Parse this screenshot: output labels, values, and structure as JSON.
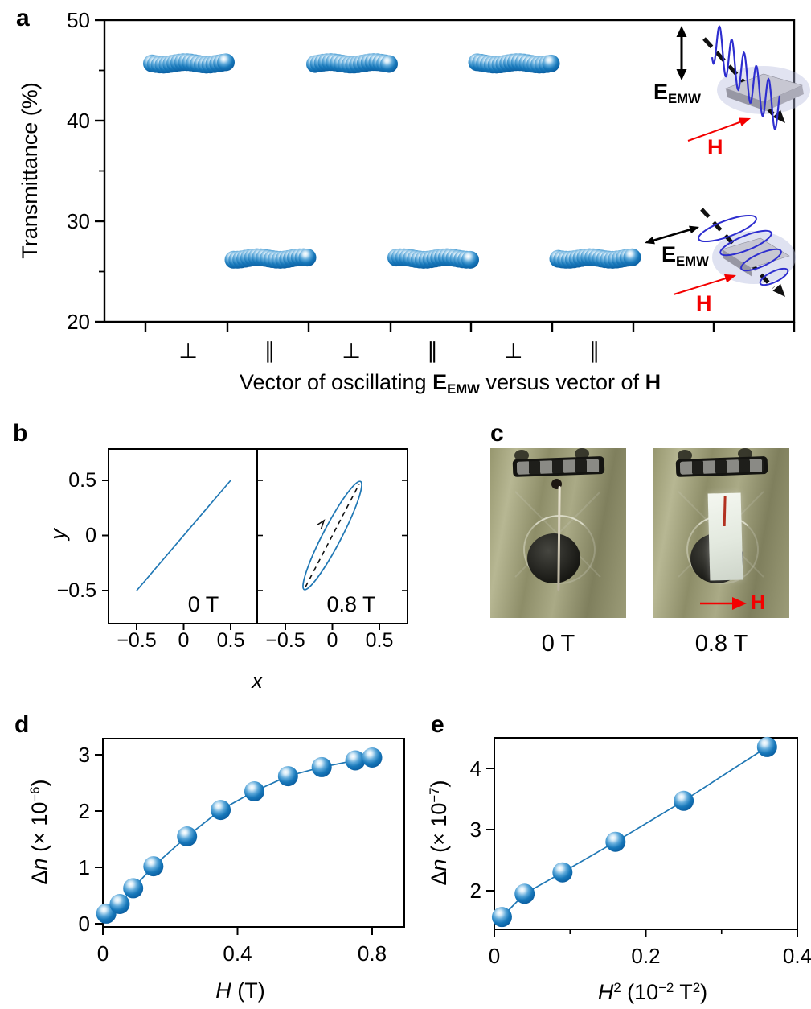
{
  "colors": {
    "accent_blue": "#1f77b4",
    "sphere_blue": "#1172b8",
    "wave_blue": "#2e2ecf",
    "red": "#f30000",
    "black": "#000000"
  },
  "panels": {
    "a": {
      "letter": "a",
      "ylabel": "Transmittance (%)",
      "xtitle": {
        "pre": "Vector of oscillating ",
        "e": "E",
        "e_sub": "EMW",
        "mid": " versus vector of ",
        "h": "H"
      },
      "insets": {
        "top": {
          "e": "E",
          "e_sub": "EMW",
          "h": "H"
        },
        "bottom": {
          "e": "E",
          "e_sub": "EMW",
          "h": "H"
        }
      }
    },
    "b": {
      "letter": "b",
      "ylabel": "y",
      "xlabel": "x",
      "labels": {
        "left": "0 T",
        "right": "0.8 T"
      }
    },
    "c": {
      "letter": "c",
      "captions": {
        "left": "0 T",
        "right": "0.8 T"
      },
      "h_label": "H"
    },
    "d": {
      "letter": "d",
      "ylabel": {
        "pre": "Δ",
        "n": "n",
        "mid": " (× 10",
        "sup": "−6",
        "post": ")"
      },
      "xlabel": {
        "h": "H",
        "post": " (T)"
      }
    },
    "e": {
      "letter": "e",
      "ylabel": {
        "pre": "Δ",
        "n": "n",
        "mid": " (× 10",
        "sup": "−7",
        "post": ")"
      },
      "xlabel": {
        "h": "H",
        "sup2": "2",
        "mid": " (10",
        "supm2": "−2",
        "t": " T",
        "sup2b": "2",
        "post": ")"
      }
    }
  },
  "chart_data": [
    {
      "panel": "a",
      "type": "scatter",
      "title": "",
      "xlabel": "Vector of oscillating E_EMW versus vector of H",
      "ylabel": "Transmittance (%)",
      "ylim": [
        20,
        50
      ],
      "yticks": [
        50,
        40,
        30,
        20
      ],
      "yticks_minor": [
        45,
        35,
        25
      ],
      "x_categories": [
        "⊥",
        "∥",
        "⊥",
        "∥",
        "⊥",
        "∥"
      ],
      "groups": [
        {
          "orientation": "⊥",
          "transmittance": 45.7
        },
        {
          "orientation": "∥",
          "transmittance": 26.3
        },
        {
          "orientation": "⊥",
          "transmittance": 45.7
        },
        {
          "orientation": "∥",
          "transmittance": 26.3
        },
        {
          "orientation": "⊥",
          "transmittance": 45.7
        },
        {
          "orientation": "∥",
          "transmittance": 26.3
        }
      ],
      "points_per_group": 20
    },
    {
      "panel": "b",
      "type": "line",
      "xlabel": "x",
      "ylabel": "y",
      "xticks": [
        -0.5,
        0,
        0.5
      ],
      "yticks": [
        0.5,
        0,
        -0.5
      ],
      "subpanels": [
        {
          "label": "0 T",
          "shape": "line",
          "line": [
            [
              -0.5,
              -0.5
            ],
            [
              0.5,
              0.5
            ]
          ]
        },
        {
          "label": "0.8 T",
          "shape": "ellipse",
          "center": [
            0,
            0
          ],
          "major_end": [
            0.3,
            0.49
          ],
          "minor_semi": 0.09
        }
      ]
    },
    {
      "panel": "d",
      "type": "scatter",
      "xlabel": "H (T)",
      "ylabel": "Δn (× 10−6)",
      "xlim": [
        0,
        0.9
      ],
      "ylim": [
        0,
        3.3
      ],
      "xticks": [
        0,
        0.4,
        0.8
      ],
      "yticks": [
        0,
        1,
        2,
        3
      ],
      "x": [
        0.01,
        0.05,
        0.09,
        0.15,
        0.25,
        0.35,
        0.45,
        0.55,
        0.65,
        0.75,
        0.8
      ],
      "y": [
        0.18,
        0.35,
        0.63,
        1.02,
        1.55,
        2.02,
        2.35,
        2.62,
        2.78,
        2.9,
        2.95
      ]
    },
    {
      "panel": "e",
      "type": "scatter",
      "xlabel": "H2 (10−2 T2)",
      "ylabel": "Δn (× 10−7)",
      "xlim": [
        0,
        0.4
      ],
      "ylim": [
        1.4,
        4.55
      ],
      "xticks": [
        0,
        0.2,
        0.4
      ],
      "xticks_minor": [
        0.1,
        0.3
      ],
      "yticks": [
        4,
        3,
        2
      ],
      "x": [
        0.01,
        0.04,
        0.09,
        0.16,
        0.25,
        0.36
      ],
      "y": [
        1.57,
        1.95,
        2.3,
        2.8,
        3.47,
        4.35
      ]
    }
  ]
}
